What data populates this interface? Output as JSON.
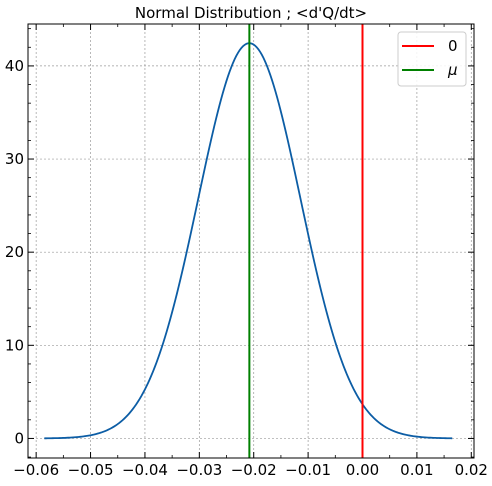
{
  "chart_data": {
    "type": "line",
    "title": "Normal Distribution ; <d'Q/dt>",
    "xlabel": "",
    "ylabel": "",
    "xlim": [
      -0.0615,
      0.0205
    ],
    "ylim": [
      -2.1,
      44.5
    ],
    "xticks": [
      -0.06,
      -0.05,
      -0.04,
      -0.03,
      -0.02,
      -0.01,
      0.0,
      0.01,
      0.02
    ],
    "xtick_labels": [
      "−0.06",
      "−0.05",
      "−0.04",
      "−0.03",
      "−0.02",
      "−0.01",
      "0.00",
      "0.01",
      "0.02"
    ],
    "yticks": [
      0,
      10,
      20,
      30,
      40
    ],
    "ytick_labels": [
      "0",
      "10",
      "20",
      "30",
      "40"
    ],
    "grid": true,
    "legend_position": "top-right",
    "series": [
      {
        "kind": "curve",
        "mean": -0.0208,
        "std": 0.0094,
        "x_range": [
          -0.0585,
          0.0165
        ],
        "color": "#0c5da5"
      }
    ],
    "vlines": [
      {
        "name": "0",
        "x": 0.0,
        "color": "#ff0000"
      },
      {
        "name": "μ",
        "x": -0.0208,
        "color": "#008000"
      }
    ]
  }
}
